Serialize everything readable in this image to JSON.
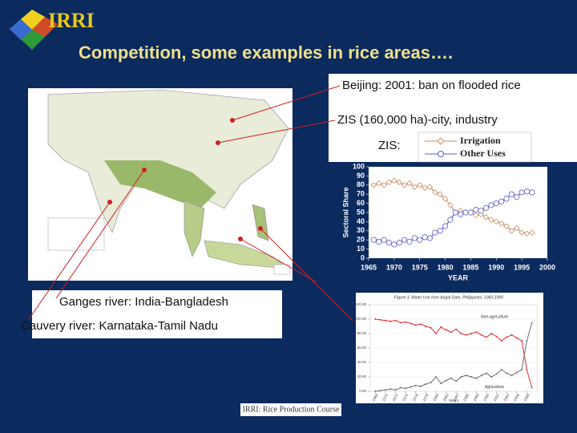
{
  "logo": "IRRI",
  "title": "Competition, some examples in rice areas….",
  "labels": {
    "beijing": "Beijing: 2001: ban on flooded rice",
    "zis": "ZIS (160,000 ha)-city, industry",
    "ganges": "Ganges river: India-Bangladesh",
    "cauvery": "Cauvery river: Karnataka-Tamil Nadu"
  },
  "footer": "IRRI: Rice Production Course",
  "chart_data": [
    {
      "type": "line",
      "title": "ZIS:",
      "ylabel": "Sectoral Share",
      "xlabel": "YEAR",
      "x": [
        1966,
        1967,
        1968,
        1969,
        1970,
        1971,
        1972,
        1973,
        1974,
        1975,
        1976,
        1977,
        1978,
        1979,
        1980,
        1981,
        1982,
        1983,
        1984,
        1985,
        1986,
        1987,
        1988,
        1989,
        1990,
        1991,
        1992,
        1993,
        1994,
        1995,
        1996,
        1997
      ],
      "series": [
        {
          "name": "Irrigation",
          "color": "#c8906a",
          "marker": "diamond",
          "values": [
            80,
            82,
            80,
            83,
            85,
            83,
            80,
            82,
            78,
            80,
            77,
            78,
            72,
            70,
            65,
            58,
            50,
            52,
            50,
            50,
            47,
            48,
            45,
            42,
            40,
            38,
            35,
            30,
            33,
            28,
            27,
            28
          ]
        },
        {
          "name": "Other Uses",
          "color": "#5a5ac8",
          "marker": "circle",
          "values": [
            20,
            18,
            20,
            17,
            15,
            17,
            20,
            18,
            22,
            20,
            23,
            22,
            28,
            30,
            35,
            42,
            50,
            48,
            50,
            50,
            53,
            52,
            55,
            58,
            60,
            62,
            65,
            70,
            67,
            72,
            73,
            72
          ]
        }
      ],
      "xlim": [
        1965,
        2000
      ],
      "xticks": [
        1965,
        1970,
        1975,
        1980,
        1985,
        1990,
        1995,
        2000
      ],
      "ylim": [
        0,
        100
      ],
      "yticks": [
        0,
        10,
        20,
        30,
        40,
        50,
        60,
        70,
        80,
        90,
        100
      ]
    },
    {
      "type": "line",
      "title": "Figure 3. Water Use from Angat Dam, Philippines: 1960-1990",
      "xlabel": "Years",
      "annotations": [
        "Non-agriculture",
        "Agriculture"
      ],
      "x": [
        1968,
        1969,
        1970,
        1971,
        1972,
        1973,
        1974,
        1975,
        1976,
        1977,
        1978,
        1979,
        1980,
        1981,
        1982,
        1983,
        1984,
        1985,
        1986,
        1987,
        1988,
        1989,
        1990,
        1991,
        1992,
        1993,
        1994,
        1995,
        1996,
        1997,
        1998,
        1999
      ],
      "series": [
        {
          "color": "#e03030",
          "values": [
            100,
            99,
            98,
            97,
            98,
            95,
            96,
            94,
            92,
            93,
            90,
            88,
            80,
            89,
            85,
            82,
            86,
            80,
            78,
            80,
            82,
            78,
            75,
            80,
            76,
            70,
            75,
            78,
            74,
            70,
            30,
            5
          ]
        },
        {
          "color": "#707070",
          "values": [
            0,
            1,
            2,
            3,
            2,
            5,
            4,
            6,
            8,
            7,
            10,
            12,
            20,
            11,
            15,
            18,
            14,
            20,
            22,
            20,
            18,
            22,
            25,
            20,
            24,
            30,
            25,
            22,
            26,
            30,
            70,
            95
          ]
        }
      ],
      "xlim": [
        1967,
        2000
      ],
      "xticks": [
        1968,
        1970,
        1972,
        1974,
        1976,
        1978,
        1980,
        1982,
        1984,
        1986,
        1988,
        1990,
        1992,
        1994,
        1996,
        1998
      ],
      "ylim": [
        0,
        120
      ],
      "yticks": [
        {
          "value": 0,
          "label": "0.00"
        },
        {
          "value": 20,
          "label": "20.00"
        },
        {
          "value": 40,
          "label": "40.00"
        },
        {
          "value": 60,
          "label": "60.00"
        },
        {
          "value": 80,
          "label": "80.00"
        },
        {
          "value": 100,
          "label": "100.00"
        },
        {
          "value": 120,
          "label": "120.00"
        }
      ]
    }
  ]
}
